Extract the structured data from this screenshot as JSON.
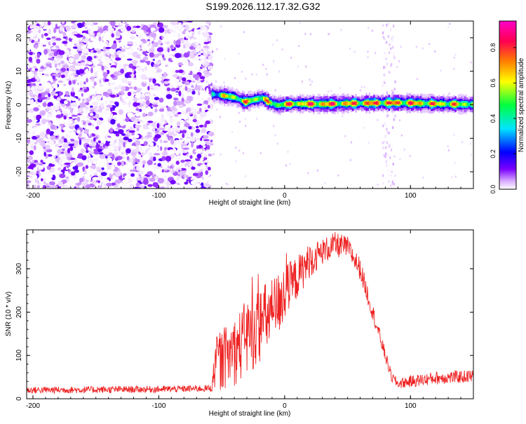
{
  "title": "S199.2026.112.17.32.G32",
  "chart_data": [
    {
      "type": "heatmap",
      "xlabel": "Height of straight line (km)",
      "ylabel": "Frequency (Hz)",
      "xlim": [
        -205,
        150
      ],
      "ylim": [
        -25,
        25
      ],
      "xticks": [
        -200,
        -100,
        0,
        100
      ],
      "yticks": [
        -20,
        -10,
        0,
        10,
        20
      ],
      "colorbar": {
        "label": "Normalized spectral amplitude",
        "range": [
          0,
          0.95
        ],
        "ticks": [
          0.0,
          0.2,
          0.4,
          0.6,
          0.8
        ],
        "colormap": [
          "#ffffff",
          "#d6a8ff",
          "#7b00ff",
          "#0000ff",
          "#00e5ff",
          "#00ff40",
          "#ffff00",
          "#ff7f00",
          "#ff0050",
          "#ff00c8"
        ]
      },
      "noise_region": {
        "x": [
          -205,
          -58
        ],
        "y": [
          -25,
          25
        ],
        "amplitude": [
          0.0,
          0.25
        ]
      },
      "sparse_columns": [
        {
          "x": [
            78,
            88
          ],
          "amplitude": [
            0.0,
            0.1
          ]
        }
      ],
      "ridge": {
        "x": [
          -58,
          -50,
          -40,
          -32,
          -25,
          -18,
          -12,
          -6,
          0,
          10,
          30,
          50,
          70,
          90,
          110,
          130,
          150
        ],
        "frequency": [
          3.2,
          2.8,
          2.2,
          0.8,
          1.5,
          2.0,
          0.6,
          -0.2,
          0.2,
          0.3,
          0.2,
          0.4,
          0.5,
          0.6,
          0.4,
          0.2,
          0.1
        ],
        "peak_amplitude": [
          0.6,
          0.75,
          0.8,
          0.85,
          0.8,
          0.85,
          0.8,
          0.75,
          0.9,
          0.9,
          0.95,
          0.9,
          0.95,
          0.95,
          0.9,
          0.85,
          0.8
        ]
      }
    },
    {
      "type": "line",
      "xlabel": "Height of straight line (km)",
      "ylabel": "SNR (10 * v/v)",
      "xlim": [
        -205,
        150
      ],
      "ylim": [
        0,
        390
      ],
      "xticks": [
        -200,
        -100,
        0,
        100
      ],
      "yticks": [
        0,
        100,
        200,
        300
      ],
      "series": [
        {
          "color": "#ee2222",
          "x": [
            -205,
            -150,
            -100,
            -58,
            -55,
            -50,
            -40,
            -30,
            -20,
            -10,
            0,
            10,
            20,
            30,
            40,
            50,
            60,
            70,
            80,
            85,
            90,
            100,
            120,
            150
          ],
          "y": [
            20,
            21,
            22,
            24,
            80,
            90,
            110,
            140,
            170,
            200,
            240,
            280,
            320,
            340,
            355,
            350,
            300,
            200,
            100,
            50,
            35,
            40,
            48,
            52
          ],
          "noise_amplitude": [
            8,
            8,
            8,
            8,
            60,
            70,
            80,
            90,
            90,
            80,
            70,
            50,
            40,
            30,
            30,
            25,
            25,
            20,
            15,
            12,
            12,
            14,
            15,
            15
          ]
        }
      ]
    }
  ]
}
